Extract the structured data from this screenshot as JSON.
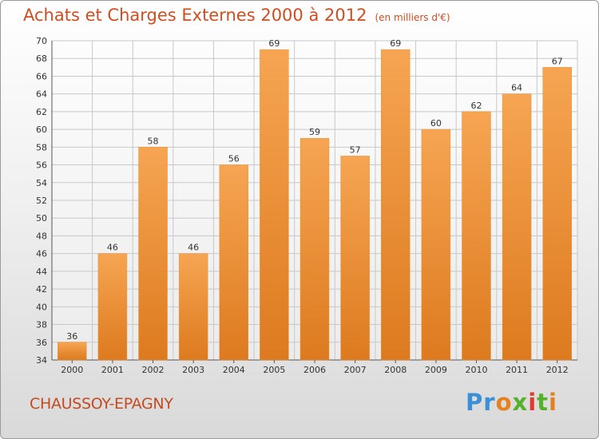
{
  "title": "Achats et Charges Externes 2000 à 2012",
  "unit_note": "(en milliers d'€)",
  "commune": "CHAUSSOY-EPAGNY",
  "logo": "Proxiti",
  "colors": {
    "title": "#d04d1f",
    "bar_light": "#f6a552",
    "bar_dark": "#dd7a1f",
    "grid": "#c8c8c8"
  },
  "chart_data": {
    "type": "bar",
    "title": "Achats et Charges Externes 2000 à 2012",
    "subtitle": "(en milliers d'€)",
    "categories": [
      "2000",
      "2001",
      "2002",
      "2003",
      "2004",
      "2005",
      "2006",
      "2007",
      "2008",
      "2009",
      "2010",
      "2011",
      "2012"
    ],
    "values": [
      36,
      46,
      58,
      46,
      56,
      69,
      59,
      57,
      69,
      60,
      62,
      64,
      67
    ],
    "ylim": [
      34,
      70
    ],
    "yticks": [
      34,
      36,
      38,
      40,
      42,
      44,
      46,
      48,
      50,
      52,
      54,
      56,
      58,
      60,
      62,
      64,
      66,
      68,
      70
    ],
    "grid": true,
    "xlabel": "",
    "ylabel": ""
  }
}
